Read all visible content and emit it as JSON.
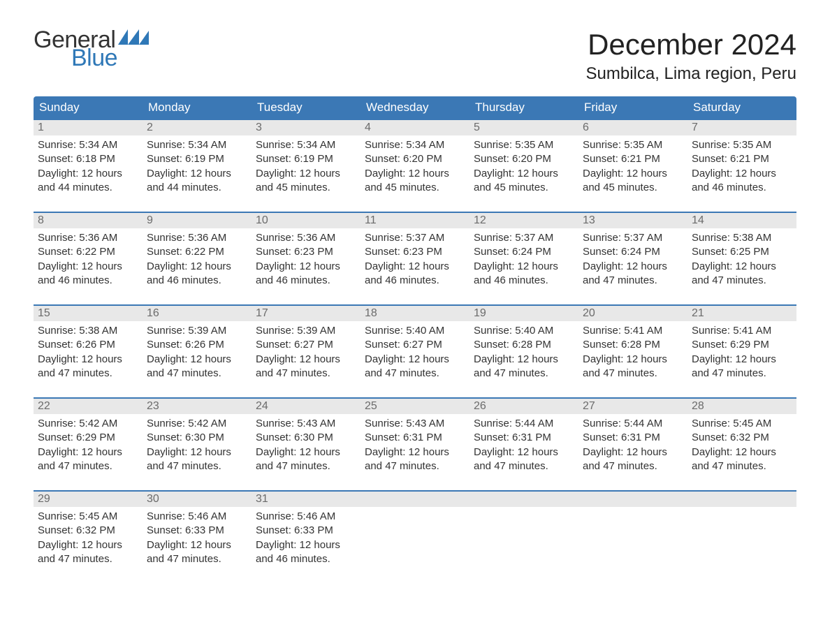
{
  "logo": {
    "general": "General",
    "blue": "Blue"
  },
  "title": "December 2024",
  "location": "Sumbilca, Lima region, Peru",
  "colors": {
    "brand_blue": "#2f78b7",
    "header_blue": "#3b78b5",
    "daynum_bg": "#e8e8e8",
    "daynum_text": "#6b6b6b",
    "body_text": "#333333",
    "background": "#ffffff"
  },
  "typography": {
    "title_fontsize": 42,
    "location_fontsize": 24,
    "header_fontsize": 17,
    "body_fontsize": 15
  },
  "weekdays": [
    "Sunday",
    "Monday",
    "Tuesday",
    "Wednesday",
    "Thursday",
    "Friday",
    "Saturday"
  ],
  "weeks": [
    [
      {
        "n": "1",
        "sr": "Sunrise: 5:34 AM",
        "ss": "Sunset: 6:18 PM",
        "d1": "Daylight: 12 hours",
        "d2": "and 44 minutes."
      },
      {
        "n": "2",
        "sr": "Sunrise: 5:34 AM",
        "ss": "Sunset: 6:19 PM",
        "d1": "Daylight: 12 hours",
        "d2": "and 44 minutes."
      },
      {
        "n": "3",
        "sr": "Sunrise: 5:34 AM",
        "ss": "Sunset: 6:19 PM",
        "d1": "Daylight: 12 hours",
        "d2": "and 45 minutes."
      },
      {
        "n": "4",
        "sr": "Sunrise: 5:34 AM",
        "ss": "Sunset: 6:20 PM",
        "d1": "Daylight: 12 hours",
        "d2": "and 45 minutes."
      },
      {
        "n": "5",
        "sr": "Sunrise: 5:35 AM",
        "ss": "Sunset: 6:20 PM",
        "d1": "Daylight: 12 hours",
        "d2": "and 45 minutes."
      },
      {
        "n": "6",
        "sr": "Sunrise: 5:35 AM",
        "ss": "Sunset: 6:21 PM",
        "d1": "Daylight: 12 hours",
        "d2": "and 45 minutes."
      },
      {
        "n": "7",
        "sr": "Sunrise: 5:35 AM",
        "ss": "Sunset: 6:21 PM",
        "d1": "Daylight: 12 hours",
        "d2": "and 46 minutes."
      }
    ],
    [
      {
        "n": "8",
        "sr": "Sunrise: 5:36 AM",
        "ss": "Sunset: 6:22 PM",
        "d1": "Daylight: 12 hours",
        "d2": "and 46 minutes."
      },
      {
        "n": "9",
        "sr": "Sunrise: 5:36 AM",
        "ss": "Sunset: 6:22 PM",
        "d1": "Daylight: 12 hours",
        "d2": "and 46 minutes."
      },
      {
        "n": "10",
        "sr": "Sunrise: 5:36 AM",
        "ss": "Sunset: 6:23 PM",
        "d1": "Daylight: 12 hours",
        "d2": "and 46 minutes."
      },
      {
        "n": "11",
        "sr": "Sunrise: 5:37 AM",
        "ss": "Sunset: 6:23 PM",
        "d1": "Daylight: 12 hours",
        "d2": "and 46 minutes."
      },
      {
        "n": "12",
        "sr": "Sunrise: 5:37 AM",
        "ss": "Sunset: 6:24 PM",
        "d1": "Daylight: 12 hours",
        "d2": "and 46 minutes."
      },
      {
        "n": "13",
        "sr": "Sunrise: 5:37 AM",
        "ss": "Sunset: 6:24 PM",
        "d1": "Daylight: 12 hours",
        "d2": "and 47 minutes."
      },
      {
        "n": "14",
        "sr": "Sunrise: 5:38 AM",
        "ss": "Sunset: 6:25 PM",
        "d1": "Daylight: 12 hours",
        "d2": "and 47 minutes."
      }
    ],
    [
      {
        "n": "15",
        "sr": "Sunrise: 5:38 AM",
        "ss": "Sunset: 6:26 PM",
        "d1": "Daylight: 12 hours",
        "d2": "and 47 minutes."
      },
      {
        "n": "16",
        "sr": "Sunrise: 5:39 AM",
        "ss": "Sunset: 6:26 PM",
        "d1": "Daylight: 12 hours",
        "d2": "and 47 minutes."
      },
      {
        "n": "17",
        "sr": "Sunrise: 5:39 AM",
        "ss": "Sunset: 6:27 PM",
        "d1": "Daylight: 12 hours",
        "d2": "and 47 minutes."
      },
      {
        "n": "18",
        "sr": "Sunrise: 5:40 AM",
        "ss": "Sunset: 6:27 PM",
        "d1": "Daylight: 12 hours",
        "d2": "and 47 minutes."
      },
      {
        "n": "19",
        "sr": "Sunrise: 5:40 AM",
        "ss": "Sunset: 6:28 PM",
        "d1": "Daylight: 12 hours",
        "d2": "and 47 minutes."
      },
      {
        "n": "20",
        "sr": "Sunrise: 5:41 AM",
        "ss": "Sunset: 6:28 PM",
        "d1": "Daylight: 12 hours",
        "d2": "and 47 minutes."
      },
      {
        "n": "21",
        "sr": "Sunrise: 5:41 AM",
        "ss": "Sunset: 6:29 PM",
        "d1": "Daylight: 12 hours",
        "d2": "and 47 minutes."
      }
    ],
    [
      {
        "n": "22",
        "sr": "Sunrise: 5:42 AM",
        "ss": "Sunset: 6:29 PM",
        "d1": "Daylight: 12 hours",
        "d2": "and 47 minutes."
      },
      {
        "n": "23",
        "sr": "Sunrise: 5:42 AM",
        "ss": "Sunset: 6:30 PM",
        "d1": "Daylight: 12 hours",
        "d2": "and 47 minutes."
      },
      {
        "n": "24",
        "sr": "Sunrise: 5:43 AM",
        "ss": "Sunset: 6:30 PM",
        "d1": "Daylight: 12 hours",
        "d2": "and 47 minutes."
      },
      {
        "n": "25",
        "sr": "Sunrise: 5:43 AM",
        "ss": "Sunset: 6:31 PM",
        "d1": "Daylight: 12 hours",
        "d2": "and 47 minutes."
      },
      {
        "n": "26",
        "sr": "Sunrise: 5:44 AM",
        "ss": "Sunset: 6:31 PM",
        "d1": "Daylight: 12 hours",
        "d2": "and 47 minutes."
      },
      {
        "n": "27",
        "sr": "Sunrise: 5:44 AM",
        "ss": "Sunset: 6:31 PM",
        "d1": "Daylight: 12 hours",
        "d2": "and 47 minutes."
      },
      {
        "n": "28",
        "sr": "Sunrise: 5:45 AM",
        "ss": "Sunset: 6:32 PM",
        "d1": "Daylight: 12 hours",
        "d2": "and 47 minutes."
      }
    ],
    [
      {
        "n": "29",
        "sr": "Sunrise: 5:45 AM",
        "ss": "Sunset: 6:32 PM",
        "d1": "Daylight: 12 hours",
        "d2": "and 47 minutes."
      },
      {
        "n": "30",
        "sr": "Sunrise: 5:46 AM",
        "ss": "Sunset: 6:33 PM",
        "d1": "Daylight: 12 hours",
        "d2": "and 47 minutes."
      },
      {
        "n": "31",
        "sr": "Sunrise: 5:46 AM",
        "ss": "Sunset: 6:33 PM",
        "d1": "Daylight: 12 hours",
        "d2": "and 46 minutes."
      },
      null,
      null,
      null,
      null
    ]
  ]
}
